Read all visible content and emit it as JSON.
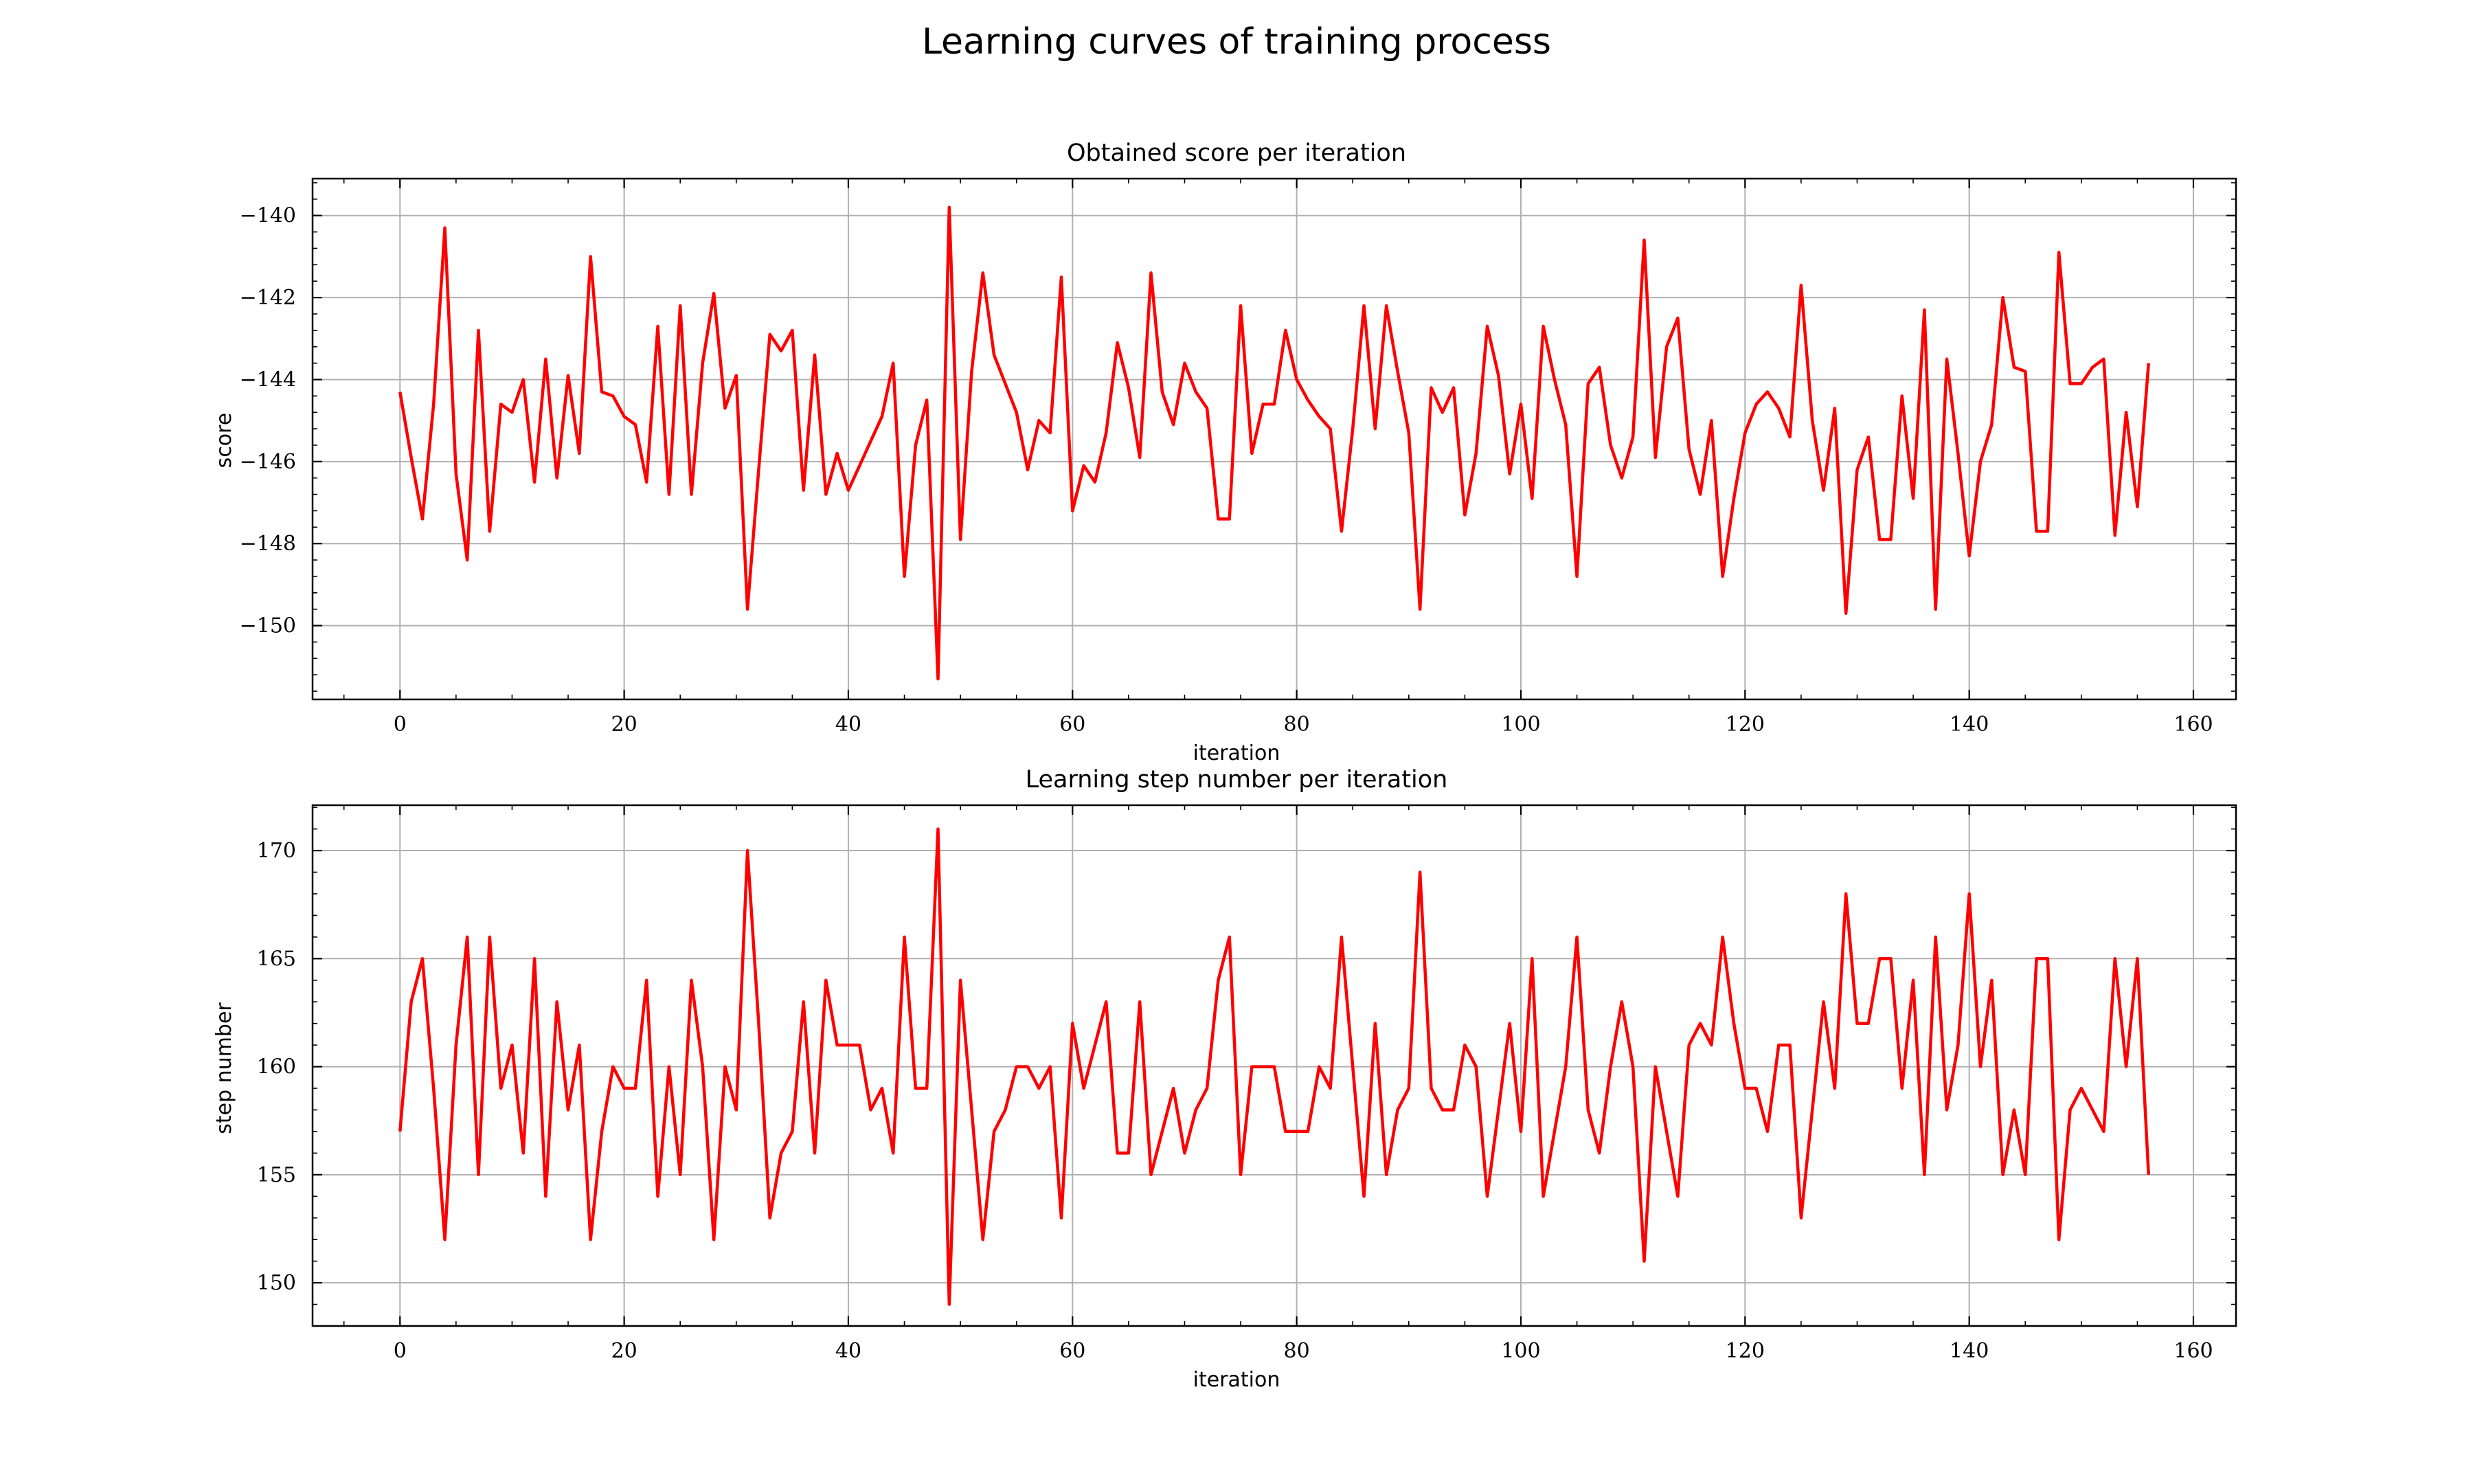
{
  "figure_title": "Learning curves of training process",
  "colors": {
    "series": "#ff0000",
    "grid": "#b0b0b0",
    "axes": "#000000"
  },
  "chart_data": [
    {
      "type": "line",
      "title": "Obtained score per iteration",
      "xlabel": "iteration",
      "ylabel": "score",
      "xlim": [
        -7.8,
        163.8
      ],
      "ylim": [
        -151.8,
        -139.1
      ],
      "xticks": [
        0,
        20,
        40,
        60,
        80,
        100,
        120,
        140,
        160
      ],
      "yticks": [
        -150,
        -148,
        -146,
        -144,
        -142,
        -140
      ],
      "grid": true,
      "series": [
        {
          "values": [
            -144.3,
            -145.9,
            -147.4,
            -144.6,
            -140.3,
            -146.3,
            -148.4,
            -142.8,
            -147.7,
            -144.6,
            -144.8,
            -144.0,
            -146.5,
            -143.5,
            -146.4,
            -143.9,
            -145.8,
            -141.0,
            -144.3,
            -144.4,
            -144.9,
            -145.1,
            -146.5,
            -142.7,
            -146.8,
            -142.2,
            -146.8,
            -143.6,
            -141.9,
            -144.7,
            -143.9,
            -149.6,
            -146.2,
            -142.9,
            -143.3,
            -142.8,
            -146.7,
            -143.4,
            -146.8,
            -145.8,
            -146.7,
            -146.1,
            -145.5,
            -144.9,
            -143.6,
            -148.8,
            -145.6,
            -144.5,
            -151.3,
            -139.8,
            -147.9,
            -143.8,
            -141.4,
            -143.4,
            -144.1,
            -144.8,
            -146.2,
            -145.0,
            -145.3,
            -141.5,
            -147.2,
            -146.1,
            -146.5,
            -145.3,
            -143.1,
            -144.2,
            -145.9,
            -141.4,
            -144.3,
            -145.1,
            -143.6,
            -144.3,
            -144.7,
            -147.4,
            -147.4,
            -142.2,
            -145.8,
            -144.6,
            -144.6,
            -142.8,
            -144.0,
            -144.5,
            -144.9,
            -145.2,
            -147.7,
            -145.2,
            -142.2,
            -145.2,
            -142.2,
            -143.8,
            -145.3,
            -149.6,
            -144.2,
            -144.8,
            -144.2,
            -147.3,
            -145.8,
            -142.7,
            -143.9,
            -146.3,
            -144.6,
            -146.9,
            -142.7,
            -144.0,
            -145.1,
            -148.8,
            -144.1,
            -143.7,
            -145.6,
            -146.4,
            -145.4,
            -140.6,
            -145.9,
            -143.2,
            -142.5,
            -145.7,
            -146.8,
            -145.0,
            -148.8,
            -146.9,
            -145.3,
            -144.6,
            -144.3,
            -144.7,
            -145.4,
            -141.7,
            -145.0,
            -146.7,
            -144.7,
            -149.7,
            -146.2,
            -145.4,
            -147.9,
            -147.9,
            -144.4,
            -146.9,
            -142.3,
            -149.6,
            -143.5,
            -145.8,
            -148.3,
            -146.0,
            -145.1,
            -142.0,
            -143.7,
            -143.8,
            -147.7,
            -147.7,
            -140.9,
            -144.1,
            -144.1,
            -143.7,
            -143.5,
            -147.8,
            -144.8,
            -147.1,
            -143.6
          ]
        }
      ]
    },
    {
      "type": "line",
      "title": "Learning step number per iteration",
      "xlabel": "iteration",
      "ylabel": "step number",
      "xlim": [
        -7.8,
        163.8
      ],
      "ylim": [
        148.0,
        172.1
      ],
      "xticks": [
        0,
        20,
        40,
        60,
        80,
        100,
        120,
        140,
        160
      ],
      "yticks": [
        150,
        155,
        160,
        165,
        170
      ],
      "grid": true,
      "series": [
        {
          "values": [
            157,
            163,
            165,
            159,
            152,
            161,
            166,
            155,
            166,
            159,
            161,
            156,
            165,
            154,
            163,
            158,
            161,
            152,
            157,
            160,
            159,
            159,
            164,
            154,
            160,
            155,
            164,
            160,
            152,
            160,
            158,
            170,
            162,
            153,
            156,
            157,
            163,
            156,
            164,
            161,
            161,
            161,
            158,
            159,
            156,
            166,
            159,
            159,
            171,
            149,
            164,
            158,
            152,
            157,
            158,
            160,
            160,
            159,
            160,
            153,
            162,
            159,
            161,
            163,
            156,
            156,
            163,
            155,
            157,
            159,
            156,
            158,
            159,
            164,
            166,
            155,
            160,
            160,
            160,
            157,
            157,
            157,
            160,
            159,
            166,
            160,
            154,
            162,
            155,
            158,
            159,
            169,
            159,
            158,
            158,
            161,
            160,
            154,
            158,
            162,
            157,
            165,
            154,
            157,
            160,
            166,
            158,
            156,
            160,
            163,
            160,
            151,
            160,
            157,
            154,
            161,
            162,
            161,
            166,
            162,
            159,
            159,
            157,
            161,
            161,
            153,
            158,
            163,
            159,
            168,
            162,
            162,
            165,
            165,
            159,
            164,
            155,
            166,
            158,
            161,
            168,
            160,
            164,
            155,
            158,
            155,
            165,
            165,
            152,
            158,
            159,
            158,
            157,
            165,
            160,
            165,
            155
          ]
        }
      ]
    }
  ]
}
